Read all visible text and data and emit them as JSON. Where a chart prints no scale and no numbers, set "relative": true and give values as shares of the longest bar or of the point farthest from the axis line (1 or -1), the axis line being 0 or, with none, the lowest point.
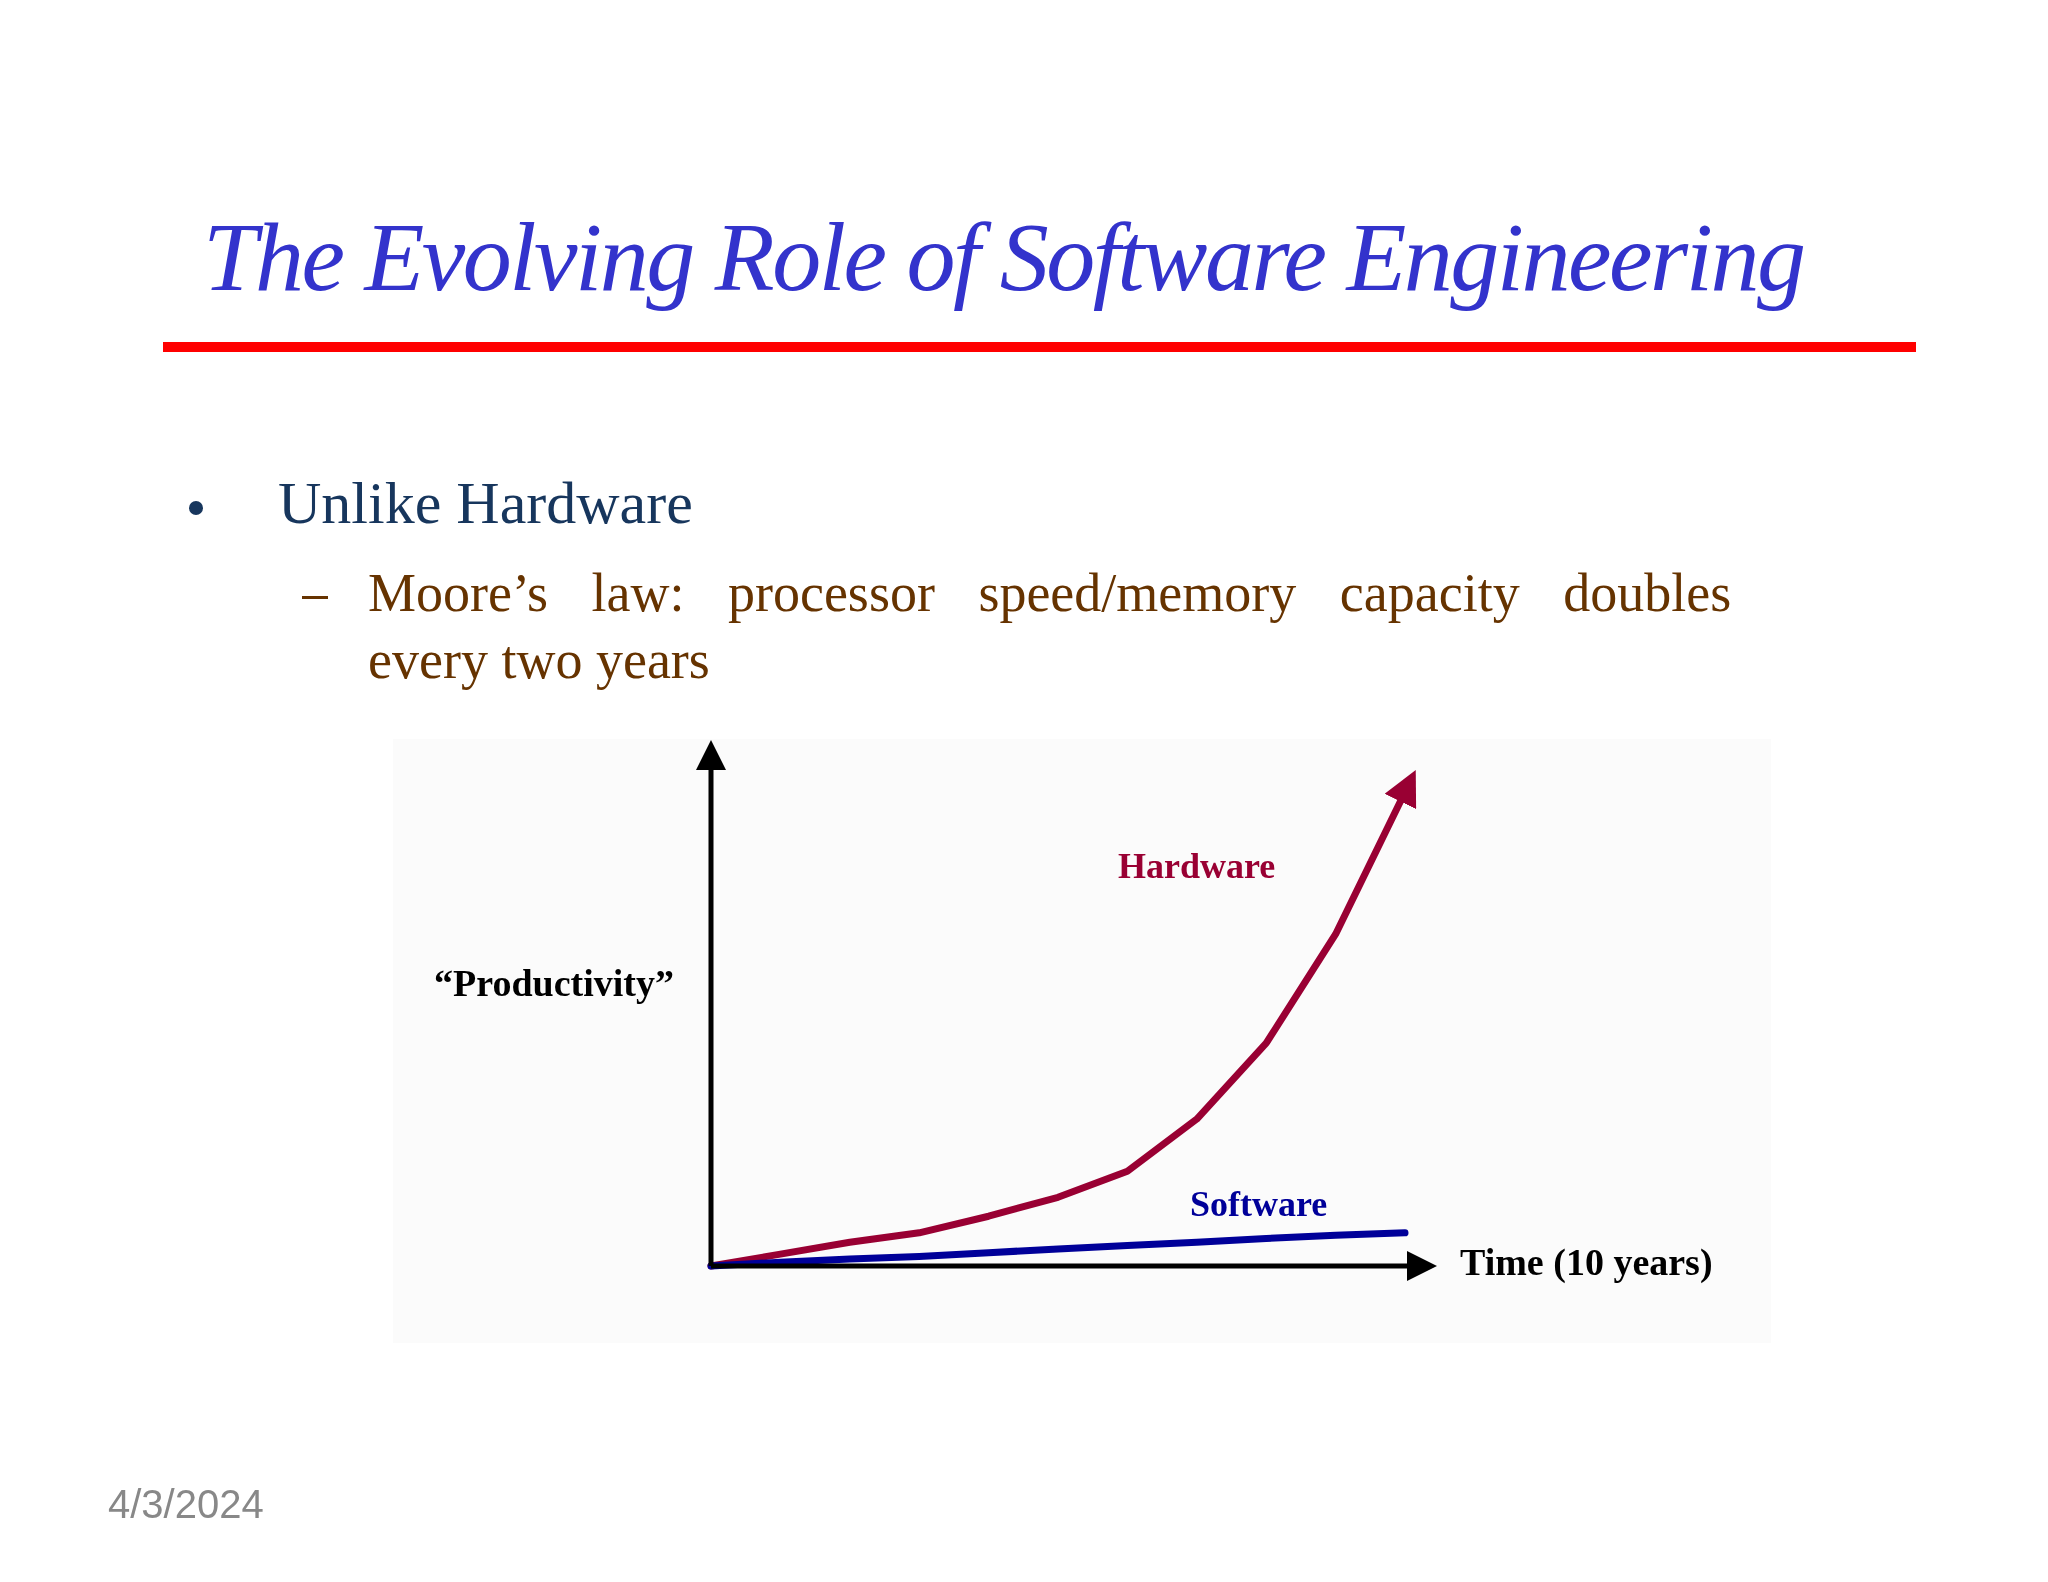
{
  "chart_data": {
    "type": "line",
    "relative": true,
    "title": "The Evolving Role of Software Engineering",
    "xlabel": "Time (10 years)",
    "ylabel": "“Productivity”",
    "categories": [
      null,
      null,
      null,
      null,
      null,
      null,
      null,
      null,
      null,
      null,
      null
    ],
    "series": [
      {
        "name": "Hardware",
        "color": "#990033",
        "values": [
          0,
          0.025,
          0.05,
          0.07,
          0.105,
          0.145,
          0.2,
          0.31,
          0.47,
          0.7,
          1
        ]
      },
      {
        "name": "Software",
        "color": "#000099",
        "values": [
          0,
          0.008,
          0.015,
          0.02,
          0.028,
          0.036,
          0.043,
          0.05,
          0.058,
          0.065,
          0.07
        ]
      }
    ],
    "marker": "none",
    "line_style": "solid",
    "annotations": [
      "Unlike Hardware",
      "Moore’s law: processor speed/memory capacity doubles every two years",
      "4/3/2024"
    ]
  }
}
